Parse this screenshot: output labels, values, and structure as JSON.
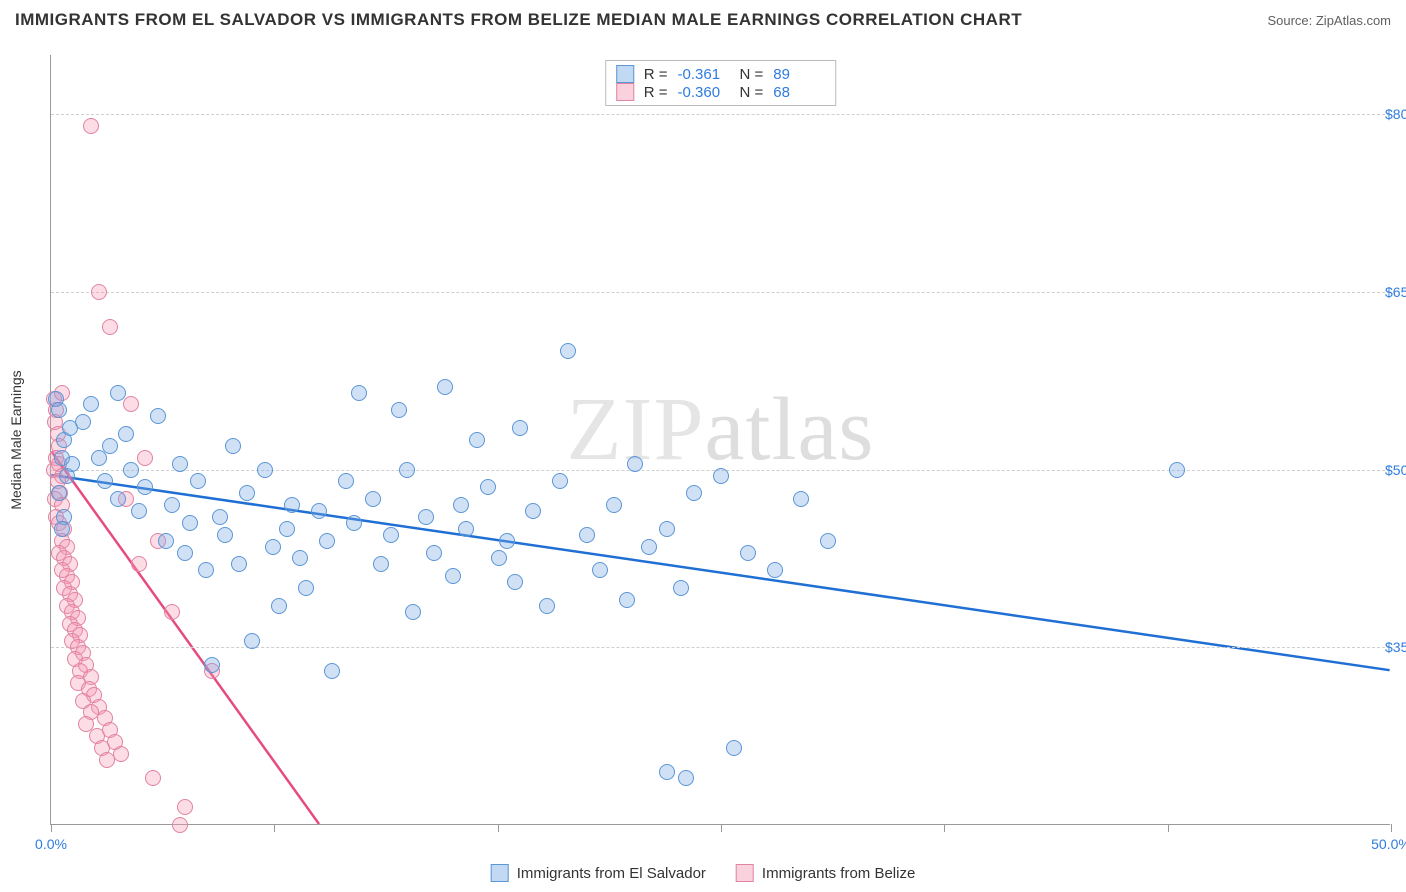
{
  "title": "IMMIGRANTS FROM EL SALVADOR VS IMMIGRANTS FROM BELIZE MEDIAN MALE EARNINGS CORRELATION CHART",
  "source": "Source: ZipAtlas.com",
  "watermark_prefix": "ZIP",
  "watermark_suffix": "atlas",
  "ylabel": "Median Male Earnings",
  "xlim": [
    0,
    50
  ],
  "ylim": [
    20000,
    85000
  ],
  "x_ticks": [
    0,
    8.33,
    16.67,
    25,
    33.33,
    41.67,
    50
  ],
  "x_tick_labels": {
    "0": "0.0%",
    "50": "50.0%"
  },
  "y_ticks": [
    35000,
    50000,
    65000,
    80000
  ],
  "y_tick_labels": {
    "35000": "$35,000",
    "50000": "$50,000",
    "65000": "$65,000",
    "80000": "$80,000"
  },
  "colors": {
    "series_a_fill": "rgba(120,170,230,0.35)",
    "series_a_stroke": "#5b96d6",
    "series_a_line": "#1f6fd4",
    "series_b_fill": "rgba(245,155,180,0.35)",
    "series_b_stroke": "#e183a2",
    "series_b_line": "#e64a82",
    "grid": "#cfcfcf",
    "axis": "#999999",
    "tick_text": "#2e7ce0",
    "title_text": "#333333"
  },
  "legend_top": [
    {
      "swatch": "a",
      "r_label": "R =",
      "r_val": "-0.361",
      "n_label": "N =",
      "n_val": "89"
    },
    {
      "swatch": "b",
      "r_label": "R =",
      "r_val": "-0.360",
      "n_label": "N =",
      "n_val": "68"
    }
  ],
  "legend_bottom": [
    {
      "swatch": "a",
      "label": "Immigrants from El Salvador"
    },
    {
      "swatch": "b",
      "label": "Immigrants from Belize"
    }
  ],
  "trend_lines": {
    "a": {
      "x1": 0,
      "y1": 49500,
      "x2": 50,
      "y2": 33000
    },
    "b": {
      "x1": 0,
      "y1": 51500,
      "x2": 10,
      "y2": 20000
    }
  },
  "series_a_points": [
    [
      0.2,
      56000
    ],
    [
      0.3,
      55000
    ],
    [
      0.5,
      52500
    ],
    [
      0.4,
      51000
    ],
    [
      0.6,
      49500
    ],
    [
      0.3,
      48000
    ],
    [
      0.5,
      46000
    ],
    [
      0.7,
      53500
    ],
    [
      0.8,
      50500
    ],
    [
      0.4,
      45000
    ],
    [
      1.2,
      54000
    ],
    [
      1.5,
      55500
    ],
    [
      1.8,
      51000
    ],
    [
      2.0,
      49000
    ],
    [
      2.2,
      52000
    ],
    [
      2.5,
      47500
    ],
    [
      2.8,
      53000
    ],
    [
      3.0,
      50000
    ],
    [
      3.3,
      46500
    ],
    [
      3.5,
      48500
    ],
    [
      4.0,
      54500
    ],
    [
      4.3,
      44000
    ],
    [
      4.5,
      47000
    ],
    [
      4.8,
      50500
    ],
    [
      5.0,
      43000
    ],
    [
      5.2,
      45500
    ],
    [
      5.5,
      49000
    ],
    [
      5.8,
      41500
    ],
    [
      6.0,
      33500
    ],
    [
      6.3,
      46000
    ],
    [
      6.5,
      44500
    ],
    [
      6.8,
      52000
    ],
    [
      7.0,
      42000
    ],
    [
      7.3,
      48000
    ],
    [
      7.5,
      35500
    ],
    [
      8.0,
      50000
    ],
    [
      8.3,
      43500
    ],
    [
      8.5,
      38500
    ],
    [
      8.8,
      45000
    ],
    [
      9.0,
      47000
    ],
    [
      9.3,
      42500
    ],
    [
      9.5,
      40000
    ],
    [
      10.0,
      46500
    ],
    [
      10.3,
      44000
    ],
    [
      10.5,
      33000
    ],
    [
      11.0,
      49000
    ],
    [
      11.3,
      45500
    ],
    [
      11.5,
      56500
    ],
    [
      12.0,
      47500
    ],
    [
      12.3,
      42000
    ],
    [
      12.7,
      44500
    ],
    [
      13.0,
      55000
    ],
    [
      13.3,
      50000
    ],
    [
      13.5,
      38000
    ],
    [
      14.0,
      46000
    ],
    [
      14.3,
      43000
    ],
    [
      14.7,
      57000
    ],
    [
      15.0,
      41000
    ],
    [
      15.3,
      47000
    ],
    [
      15.5,
      45000
    ],
    [
      15.9,
      52500
    ],
    [
      16.3,
      48500
    ],
    [
      16.7,
      42500
    ],
    [
      17.0,
      44000
    ],
    [
      17.3,
      40500
    ],
    [
      17.5,
      53500
    ],
    [
      18.0,
      46500
    ],
    [
      18.5,
      38500
    ],
    [
      19.0,
      49000
    ],
    [
      19.3,
      60000
    ],
    [
      20.0,
      44500
    ],
    [
      20.5,
      41500
    ],
    [
      21.0,
      47000
    ],
    [
      21.5,
      39000
    ],
    [
      21.8,
      50500
    ],
    [
      22.3,
      43500
    ],
    [
      23.0,
      45000
    ],
    [
      23.5,
      40000
    ],
    [
      23.0,
      24500
    ],
    [
      23.7,
      24000
    ],
    [
      24.0,
      48000
    ],
    [
      25.5,
      26500
    ],
    [
      25.0,
      49500
    ],
    [
      26.0,
      43000
    ],
    [
      27.0,
      41500
    ],
    [
      28.0,
      47500
    ],
    [
      29.0,
      44000
    ],
    [
      42.0,
      50000
    ],
    [
      2.5,
      56500
    ]
  ],
  "series_b_points": [
    [
      0.1,
      56000
    ],
    [
      0.2,
      55000
    ],
    [
      0.15,
      54000
    ],
    [
      0.25,
      53000
    ],
    [
      0.3,
      52000
    ],
    [
      0.2,
      51000
    ],
    [
      0.1,
      50000
    ],
    [
      0.3,
      50500
    ],
    [
      0.4,
      49500
    ],
    [
      0.25,
      49000
    ],
    [
      0.35,
      48000
    ],
    [
      0.15,
      47500
    ],
    [
      0.4,
      47000
    ],
    [
      0.2,
      46000
    ],
    [
      0.3,
      45500
    ],
    [
      0.5,
      45000
    ],
    [
      0.4,
      44000
    ],
    [
      0.6,
      43500
    ],
    [
      0.3,
      43000
    ],
    [
      0.5,
      42500
    ],
    [
      0.7,
      42000
    ],
    [
      0.4,
      41500
    ],
    [
      0.6,
      41000
    ],
    [
      0.8,
      40500
    ],
    [
      0.5,
      40000
    ],
    [
      0.7,
      39500
    ],
    [
      0.9,
      39000
    ],
    [
      0.6,
      38500
    ],
    [
      0.8,
      38000
    ],
    [
      1.0,
      37500
    ],
    [
      0.7,
      37000
    ],
    [
      0.9,
      36500
    ],
    [
      1.1,
      36000
    ],
    [
      0.8,
      35500
    ],
    [
      1.0,
      35000
    ],
    [
      1.2,
      34500
    ],
    [
      0.9,
      34000
    ],
    [
      1.3,
      33500
    ],
    [
      1.1,
      33000
    ],
    [
      1.5,
      32500
    ],
    [
      1.0,
      32000
    ],
    [
      1.4,
      31500
    ],
    [
      1.6,
      31000
    ],
    [
      1.2,
      30500
    ],
    [
      1.8,
      30000
    ],
    [
      1.5,
      29500
    ],
    [
      2.0,
      29000
    ],
    [
      1.3,
      28500
    ],
    [
      2.2,
      28000
    ],
    [
      1.7,
      27500
    ],
    [
      2.4,
      27000
    ],
    [
      1.9,
      26500
    ],
    [
      2.6,
      26000
    ],
    [
      2.1,
      25500
    ],
    [
      1.5,
      79000
    ],
    [
      1.8,
      65000
    ],
    [
      2.2,
      62000
    ],
    [
      3.0,
      55500
    ],
    [
      3.5,
      51000
    ],
    [
      2.8,
      47500
    ],
    [
      4.0,
      44000
    ],
    [
      3.3,
      42000
    ],
    [
      4.5,
      38000
    ],
    [
      3.8,
      24000
    ],
    [
      5.0,
      21500
    ],
    [
      4.8,
      20000
    ],
    [
      6.0,
      33000
    ],
    [
      0.4,
      56500
    ]
  ]
}
